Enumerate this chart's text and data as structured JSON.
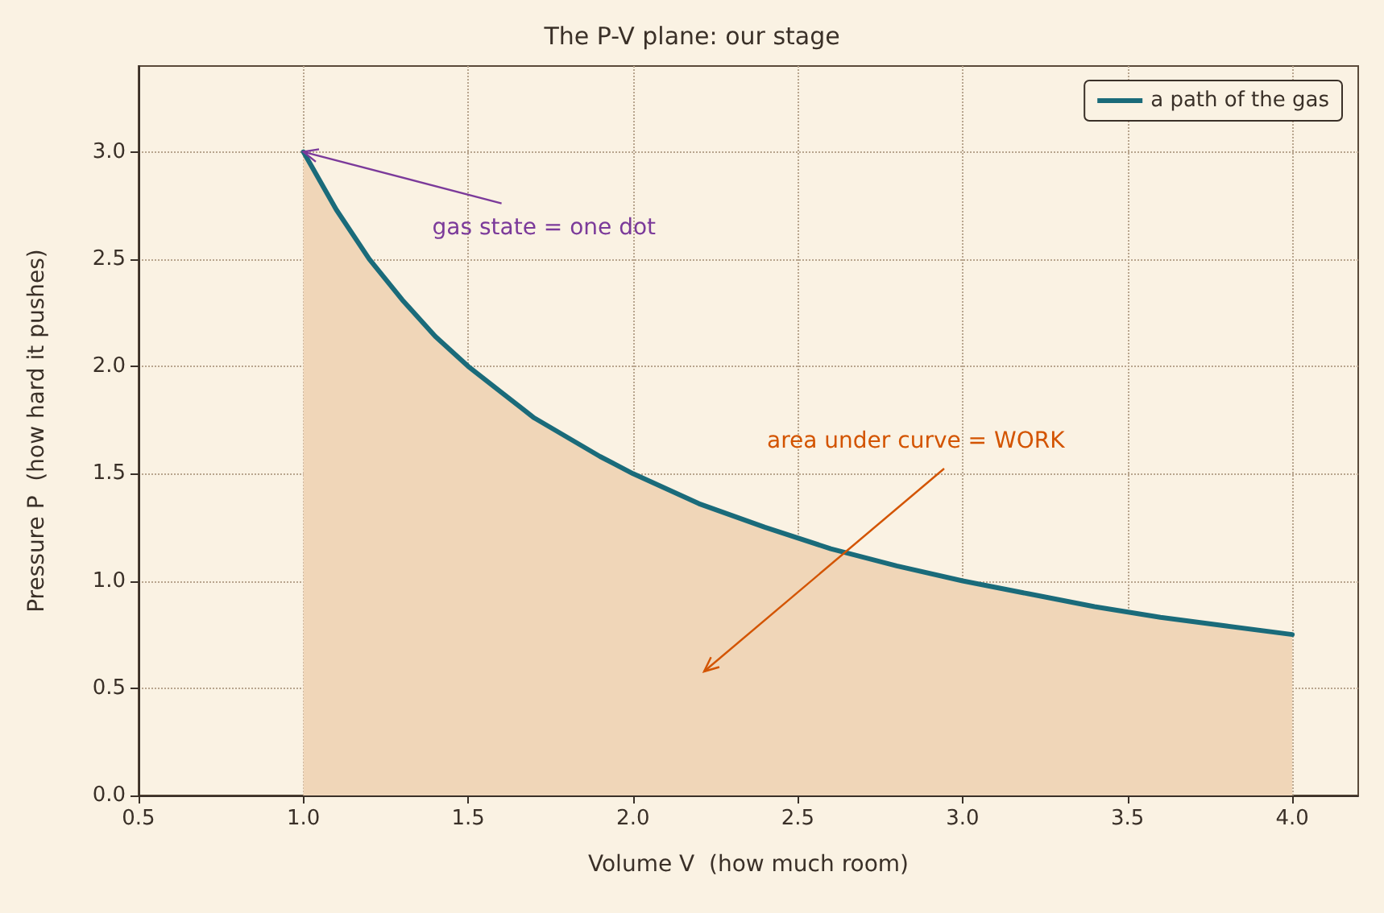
{
  "chart_data": {
    "type": "line",
    "title": "The P-V plane: our stage",
    "xlabel": "Volume V  (how much room)",
    "ylabel": "Pressure P  (how hard it pushes)",
    "x": [
      1,
      1.1,
      1.2,
      1.3,
      1.4,
      1.5,
      1.6,
      1.7,
      1.8,
      1.9,
      2,
      2.2,
      2.4,
      2.6,
      2.8,
      3,
      3.2,
      3.4,
      3.6,
      3.8,
      4
    ],
    "series": [
      {
        "type": "area",
        "color": "#f0d6b8",
        "values": [
          3,
          2.73,
          2.5,
          2.31,
          2.14,
          2,
          1.88,
          1.76,
          1.67,
          1.58,
          1.5,
          1.36,
          1.25,
          1.15,
          1.07,
          1,
          0.94,
          0.88,
          0.83,
          0.79,
          0.75
        ]
      },
      {
        "name": "a path of the gas",
        "color": "#1a6b7a",
        "values": [
          3,
          2.73,
          2.5,
          2.31,
          2.14,
          2,
          1.88,
          1.76,
          1.67,
          1.58,
          1.5,
          1.36,
          1.25,
          1.15,
          1.07,
          1,
          0.94,
          0.88,
          0.83,
          0.79,
          0.75
        ]
      }
    ],
    "annotations": [
      {
        "text": "gas state = one dot",
        "x": 1,
        "y": 3
      },
      "area under curve = WORK"
    ],
    "xlim": [
      0.5,
      4.2
    ],
    "xticks": [
      0.5,
      {
        "value": 1,
        "label": "1.0"
      },
      1.5,
      {
        "value": 2,
        "label": "2.0"
      },
      2.5,
      {
        "value": 3,
        "label": "3.0"
      },
      3.5,
      {
        "value": 4,
        "label": "4.0"
      }
    ],
    "ylim": [
      0,
      3.4
    ],
    "yticks": [
      {
        "value": 0,
        "label": "0.0"
      },
      0.5,
      {
        "value": 1,
        "label": "1.0"
      },
      1.5,
      {
        "value": 2,
        "label": "2.0"
      },
      2.5,
      {
        "value": 3,
        "label": "3.0"
      }
    ],
    "grid": true,
    "legend": "top right",
    "marker": "none",
    "line_style": "solid"
  }
}
